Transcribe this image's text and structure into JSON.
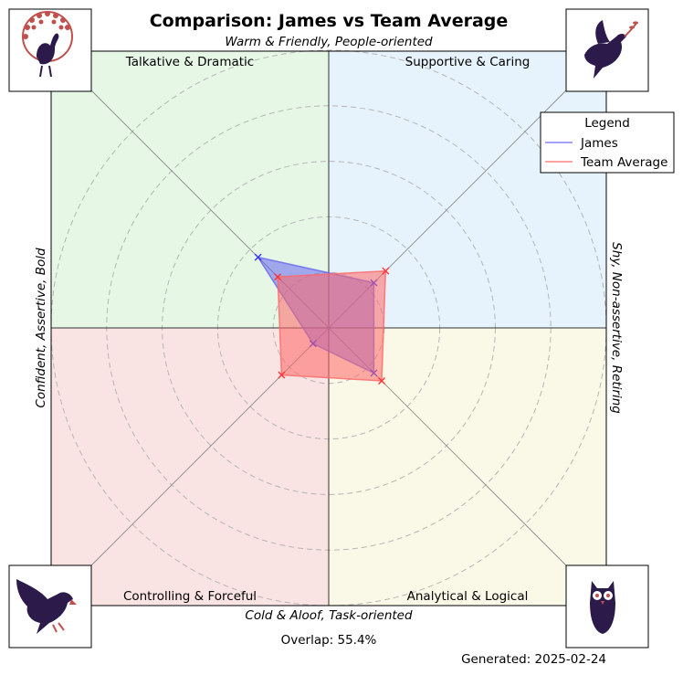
{
  "chart_data": {
    "type": "radar",
    "title": "Comparison: James vs Team Average",
    "axis_labels": {
      "top": "Warm & Friendly, People-oriented",
      "bottom": "Cold & Aloof, Task-oriented",
      "left": "Confident, Assertive, Bold",
      "right": "Shy, Non-assertive, Retiring"
    },
    "quadrants": [
      {
        "key": "top_left",
        "label": "Talkative & Dramatic",
        "color": "#e6f7e6",
        "icon": "peacock-icon"
      },
      {
        "key": "top_right",
        "label": "Supportive & Caring",
        "color": "#e6f3fc",
        "icon": "dove-icon"
      },
      {
        "key": "bottom_left",
        "label": "Controlling & Forceful",
        "color": "#fae3e3",
        "icon": "eagle-icon"
      },
      {
        "key": "bottom_right",
        "label": "Analytical & Logical",
        "color": "#faf9e8",
        "icon": "owl-icon"
      }
    ],
    "directions": [
      "Talkative & Dramatic",
      "Supportive & Caring",
      "Analytical & Logical",
      "Controlling & Forceful"
    ],
    "range": [
      0,
      100
    ],
    "rings": [
      20,
      40,
      60,
      80,
      100
    ],
    "grid": true,
    "legend": {
      "title": "Legend",
      "position": "top-right"
    },
    "series": [
      {
        "name": "James",
        "color": "#3333ff",
        "fill": "#6666ee",
        "values": [
          36,
          23,
          23,
          8
        ]
      },
      {
        "name": "Team Average",
        "color": "#ff3333",
        "fill": "#ff6666",
        "values": [
          26,
          29,
          27,
          24
        ]
      }
    ],
    "overlap_text": "Overlap: 55.4%",
    "generated_text": "Generated: 2025-02-24"
  }
}
